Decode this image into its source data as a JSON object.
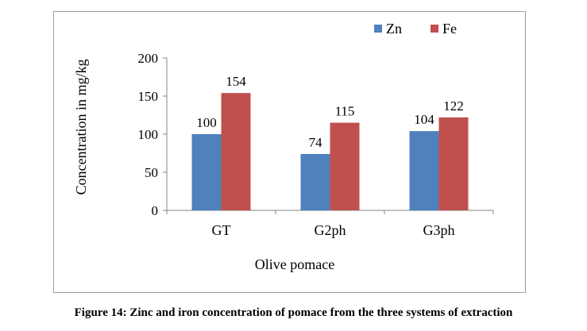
{
  "chart_data": {
    "type": "bar",
    "categories": [
      "GT",
      "G2ph",
      "G3ph"
    ],
    "series": [
      {
        "name": "Zn",
        "values": [
          100,
          74,
          104
        ],
        "color": "#4f81bd"
      },
      {
        "name": "Fe",
        "values": [
          154,
          115,
          122
        ],
        "color": "#c0504d"
      }
    ],
    "data_labels": [
      [
        "100",
        "74",
        "104"
      ],
      [
        "154",
        "115",
        "122"
      ]
    ],
    "xlabel": "Olive pomace",
    "ylabel": "Concentration in mg/kg",
    "ylim": [
      0,
      200
    ],
    "yticks": [
      0,
      50,
      100,
      150,
      200
    ],
    "grid": false,
    "legend_position": "top-right"
  },
  "caption": "Figure 14: Zinc and iron concentration of pomace from the three systems of extraction"
}
